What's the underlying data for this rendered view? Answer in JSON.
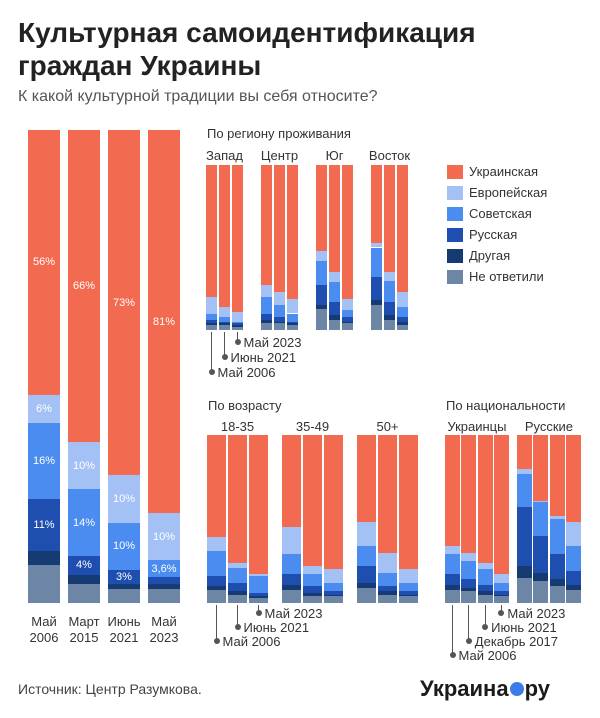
{
  "chart_data": [
    {
      "type": "bar",
      "stacked": true,
      "title": "Культурная самоидентификация граждан Украины",
      "subtitle": "К какой культурной традиции вы себя относите?",
      "categories": [
        "Май 2006",
        "Март 2015",
        "Июнь 2021",
        "Май 2023"
      ],
      "series": [
        {
          "name": "Украинская",
          "color": "#f26b50",
          "values": [
            56,
            66,
            73,
            81
          ],
          "value_labels": [
            "56%",
            "66%",
            "73%",
            "81%"
          ]
        },
        {
          "name": "Европейская",
          "color": "#a3c1f5",
          "values": [
            6,
            10,
            10,
            10
          ],
          "value_labels": [
            "6%",
            "10%",
            "10%",
            "10%"
          ]
        },
        {
          "name": "Советская",
          "color": "#4a8cf0",
          "values": [
            16,
            14,
            10,
            3.6
          ],
          "value_labels": [
            "16%",
            "14%",
            "10%",
            "3,6%"
          ]
        },
        {
          "name": "Русская",
          "color": "#1e4fb0",
          "values": [
            11,
            4,
            3,
            1.4
          ],
          "value_labels": [
            "11%",
            "4%",
            "3%",
            null
          ]
        },
        {
          "name": "Другая",
          "color": "#163a72",
          "values": [
            3,
            2,
            1,
            1
          ],
          "value_labels": [
            null,
            null,
            null,
            null
          ]
        },
        {
          "name": "Не ответили",
          "color": "#6e86a6",
          "values": [
            8,
            4,
            3,
            3
          ],
          "value_labels": [
            null,
            null,
            null,
            null
          ]
        }
      ]
    },
    {
      "type": "bar",
      "stacked": true,
      "title": "По региону проживания",
      "periods": [
        "Май 2006",
        "Июнь 2021",
        "Май 2023"
      ],
      "groups": [
        {
          "label": "Запад",
          "bars": [
            [
              80,
              10,
              4,
              2,
              1,
              3
            ],
            [
              86,
              6,
              3,
              1,
              1,
              3
            ],
            [
              89,
              6,
              1,
              1,
              1,
              2
            ]
          ]
        },
        {
          "label": "Центр",
          "bars": [
            [
              73,
              7,
              10,
              4,
              2,
              4
            ],
            [
              77,
              8,
              7,
              3,
              1,
              4
            ],
            [
              81,
              9,
              5,
              1,
              1,
              3
            ]
          ]
        },
        {
          "label": "Юг",
          "bars": [
            [
              52,
              6,
              15,
              12,
              2,
              13
            ],
            [
              65,
              6,
              12,
              8,
              3,
              6
            ],
            [
              81,
              7,
              4,
              3,
              1,
              4
            ]
          ]
        },
        {
          "label": "Восток",
          "bars": [
            [
              47,
              3,
              18,
              14,
              3,
              15
            ],
            [
              65,
              5,
              13,
              8,
              3,
              6
            ],
            [
              77,
              9,
              6,
              3,
              2,
              3
            ]
          ]
        }
      ]
    },
    {
      "type": "bar",
      "stacked": true,
      "title": "По возрасту",
      "periods": [
        "Май 2006",
        "Июнь 2021",
        "Май 2023"
      ],
      "groups": [
        {
          "label": "18-35",
          "bars": [
            [
              61,
              8,
              15,
              6,
              2,
              8
            ],
            [
              76,
              3,
              9,
              5,
              2,
              5
            ],
            [
              83,
              1,
              10,
              2,
              1,
              3
            ]
          ]
        },
        {
          "label": "35-49",
          "bars": [
            [
              55,
              16,
              12,
              6,
              3,
              8
            ],
            [
              78,
              5,
              7,
              4,
              2,
              4
            ],
            [
              80,
              8,
              5,
              2,
              1,
              4
            ]
          ]
        },
        {
          "label": "50+",
          "bars": [
            [
              52,
              14,
              12,
              10,
              3,
              9
            ],
            [
              70,
              12,
              8,
              3,
              2,
              5
            ],
            [
              80,
              8,
              5,
              2,
              1,
              4
            ]
          ]
        }
      ]
    },
    {
      "type": "bar",
      "stacked": true,
      "title": "По национальности",
      "periods": [
        "Май 2006",
        "Декабрь 2017",
        "Июнь 2021",
        "Май 2023"
      ],
      "groups": [
        {
          "label": "Украинцы",
          "bars": [
            [
              66,
              5,
              12,
              6,
              3,
              8
            ],
            [
              70,
              5,
              11,
              5,
              2,
              7
            ],
            [
              76,
              4,
              9,
              4,
              2,
              5
            ],
            [
              83,
              5,
              5,
              2,
              1,
              4
            ]
          ]
        },
        {
          "label": "Русские",
          "bars": [
            [
              20,
              3,
              20,
              35,
              7,
              15
            ],
            [
              39,
              1,
              20,
              22,
              5,
              13
            ],
            [
              48,
              2,
              21,
              15,
              4,
              10
            ],
            [
              52,
              14,
              15,
              8,
              3,
              8
            ]
          ]
        }
      ]
    }
  ],
  "source": "Источник: Центр Разумкова.",
  "logo": {
    "name": "Украина",
    "suffix": "ру"
  }
}
